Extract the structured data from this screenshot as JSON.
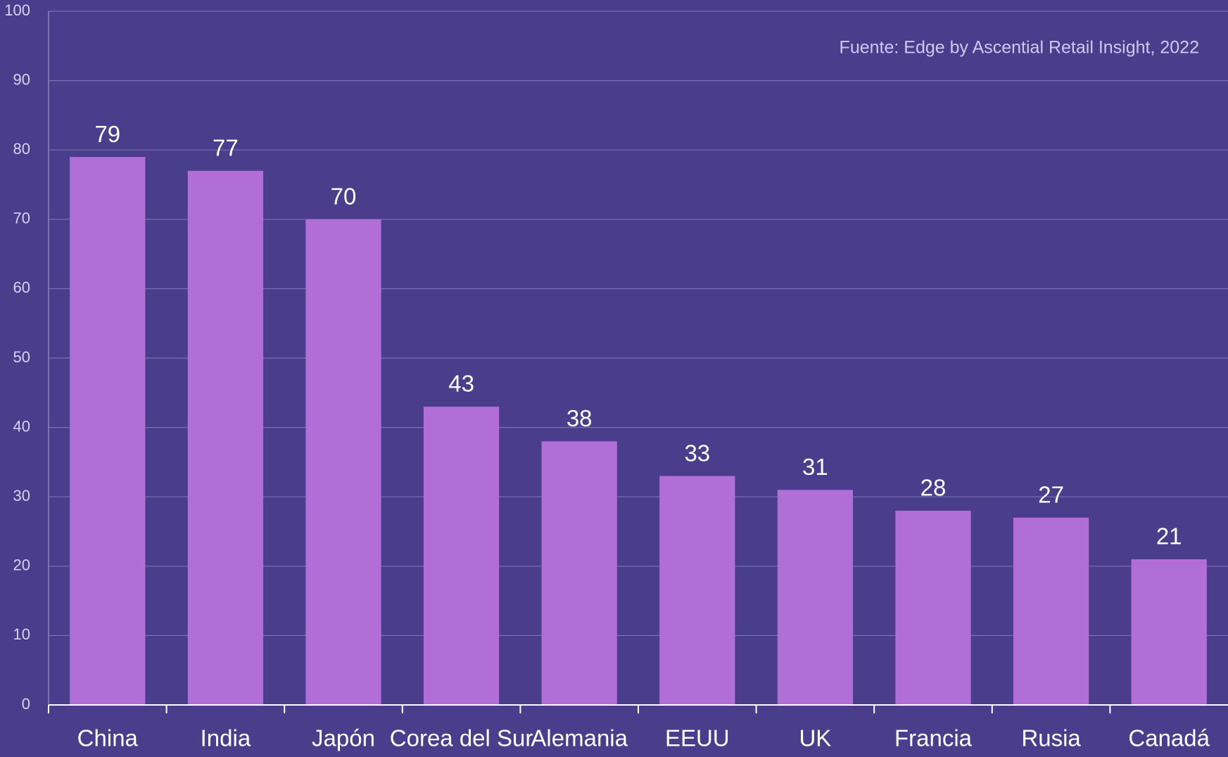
{
  "chart_data": {
    "type": "bar",
    "annotation": "Fuente: Edge by Ascential Retail Insight, 2022",
    "categories": [
      "China",
      "India",
      "Japón",
      "Corea del Sur",
      "Alemania",
      "EEUU",
      "UK",
      "Francia",
      "Rusia",
      "Canadá"
    ],
    "values": [
      79,
      77,
      70,
      43,
      38,
      33,
      31,
      28,
      27,
      21
    ],
    "color": "#b06ed6",
    "ylim": [
      0,
      100
    ],
    "yticks": [
      0,
      10,
      20,
      30,
      40,
      50,
      60,
      70,
      80,
      90,
      100
    ],
    "grid": true
  }
}
